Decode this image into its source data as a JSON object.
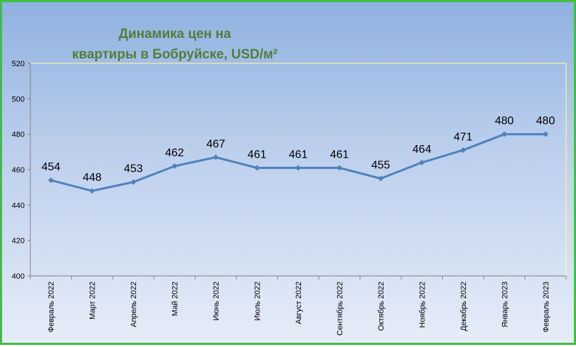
{
  "chart_data": {
    "type": "line",
    "title_lines": [
      "Динамика цен на",
      "квартиры в Бобруйске, USD/м²"
    ],
    "categories": [
      "Февраль 2022",
      "Март 2022",
      "Апрель 2022",
      "Май 2022",
      "Июнь 2022",
      "Июль 2022",
      "Август 2022",
      "Сентябрь 2022",
      "Октябрь 2022",
      "Ноябрь 2022",
      "Декабрь 2022",
      "Январь 2023",
      "Февраль 2023"
    ],
    "series": [
      {
        "values": [
          454,
          448,
          453,
          462,
          467,
          461,
          461,
          461,
          455,
          464,
          471,
          480,
          480
        ]
      }
    ],
    "data_labels": [
      "454",
      "448",
      "453",
      "462",
      "467",
      "461",
      "461",
      "461",
      "455",
      "464",
      "471",
      "480",
      "480"
    ],
    "y_ticks": [
      "400",
      "420",
      "440",
      "460",
      "480",
      "500",
      "520"
    ],
    "ylim": [
      400,
      520
    ],
    "xlabel": "",
    "ylabel": "",
    "grid": false,
    "legend": "none",
    "colors": {
      "line": "#4f81bd",
      "title": "#4f7f3a",
      "plot_border": "#ffff99",
      "frame": "#3fbf3f"
    }
  }
}
